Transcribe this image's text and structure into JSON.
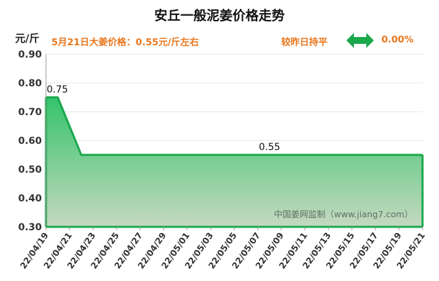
{
  "header": {
    "title": "安丘一般泥姜价格走势",
    "unit": "元/斤",
    "price_note": "5月21日大姜价格：0.55元/斤左右",
    "change_label": "较昨日持平",
    "change_value": "0.00%"
  },
  "colors": {
    "line": "#1aa84c",
    "arrow": "#1aa84c",
    "accent_text": "#e8771e",
    "area_top": "#34c46a",
    "area_bottom": "#c5d9c0"
  },
  "chart_data": {
    "type": "area",
    "title": "安丘一般泥姜价格走势",
    "ylabel": "元/斤",
    "ylim": [
      0.3,
      0.9
    ],
    "yticks": [
      "0.30",
      "0.40",
      "0.50",
      "0.60",
      "0.70",
      "0.80",
      "0.90"
    ],
    "grid": true,
    "x": [
      "22/04/19",
      "22/04/20",
      "22/04/21",
      "22/04/22",
      "22/04/23",
      "22/04/24",
      "22/04/25",
      "22/04/26",
      "22/04/27",
      "22/04/28",
      "22/04/29",
      "22/04/30",
      "22/05/01",
      "22/05/02",
      "22/05/03",
      "22/05/04",
      "22/05/05",
      "22/05/06",
      "22/05/07",
      "22/05/08",
      "22/05/09",
      "22/05/10",
      "22/05/11",
      "22/05/12",
      "22/05/13",
      "22/05/14",
      "22/05/15",
      "22/05/16",
      "22/05/17",
      "22/05/18",
      "22/05/19",
      "22/05/20",
      "22/05/21"
    ],
    "xtick_labels": [
      "22/04/19",
      "22/04/21",
      "22/04/23",
      "22/04/25",
      "22/04/27",
      "22/04/29",
      "22/05/01",
      "22/05/03",
      "22/05/05",
      "22/05/07",
      "22/05/09",
      "22/05/11",
      "22/05/13",
      "22/05/15",
      "22/05/17",
      "22/05/19",
      "22/05/21"
    ],
    "series": [
      {
        "values": [
          0.75,
          0.75,
          0.65,
          0.55,
          0.55,
          0.55,
          0.55,
          0.55,
          0.55,
          0.55,
          0.55,
          0.55,
          0.55,
          0.55,
          0.55,
          0.55,
          0.55,
          0.55,
          0.55,
          0.55,
          0.55,
          0.55,
          0.55,
          0.55,
          0.55,
          0.55,
          0.55,
          0.55,
          0.55,
          0.55,
          0.55,
          0.55,
          0.55
        ]
      }
    ],
    "annotations": [
      {
        "x": "22/04/19",
        "y": 0.75,
        "text": "0.75"
      },
      {
        "x": "22/05/08",
        "y": 0.55,
        "text": "0.55"
      }
    ],
    "watermark": "中国姜网监制（www.jiang7.com）"
  }
}
